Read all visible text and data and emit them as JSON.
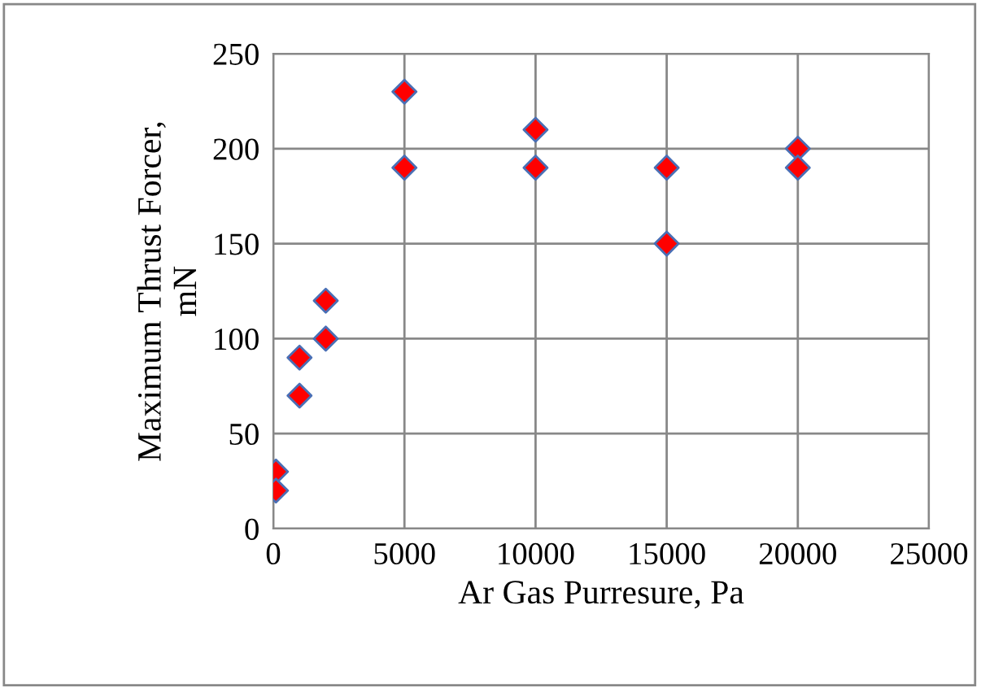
{
  "chart_data": {
    "type": "scatter",
    "xlabel": "Ar Gas Purresure, Pa",
    "ylabel": "Maximum Thrust Forcer,\nmN",
    "x": [
      100,
      100,
      1000,
      1000,
      2000,
      2000,
      5000,
      5000,
      10000,
      10000,
      15000,
      15000,
      20000,
      20000
    ],
    "series": [
      {
        "color": "#ff0000",
        "values": [
          30,
          20,
          90,
          70,
          120,
          100,
          230,
          190,
          210,
          190,
          190,
          150,
          200,
          190
        ]
      }
    ],
    "xlim": [
      0,
      25000
    ],
    "xticks": [
      0,
      5000,
      10000,
      15000,
      20000,
      25000
    ],
    "ylim": [
      0,
      250
    ],
    "yticks": [
      0,
      50,
      100,
      150,
      200,
      250
    ],
    "grid": true,
    "marker": "diamond"
  }
}
